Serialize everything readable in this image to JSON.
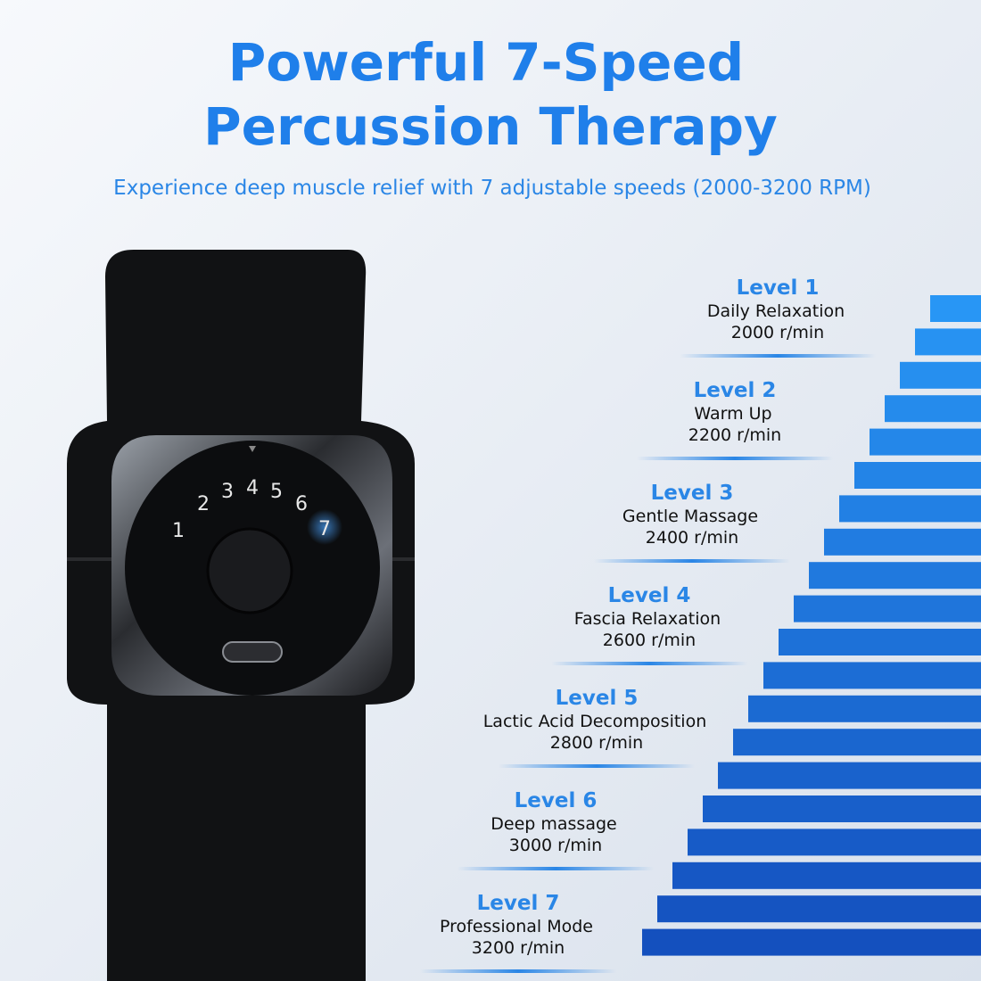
{
  "header": {
    "title": [
      "Powerful 7-Speed",
      "Percussion Therapy"
    ],
    "subtitle": "Experience deep muscle relief with 7 adjustable speeds (2000-3200 RPM)"
  },
  "dial": {
    "numbers": [
      "1",
      "2",
      "3",
      "4",
      "5",
      "6",
      "7"
    ]
  },
  "levels": [
    {
      "label": "Level 1",
      "name": "Daily Relaxation",
      "speed": "2000 r/min"
    },
    {
      "label": "Level 2",
      "name": "Warm Up",
      "speed": "2200 r/min"
    },
    {
      "label": "Level 3",
      "name": "Gentle Massage",
      "speed": "2400 r/min"
    },
    {
      "label": "Level 4",
      "name": "Fascia Relaxation",
      "speed": "2600 r/min"
    },
    {
      "label": "Level 5",
      "name": "Lactic Acid Decomposition",
      "speed": "2800 r/min"
    },
    {
      "label": "Level 6",
      "name": "Deep massage",
      "speed": "3000 r/min"
    },
    {
      "label": "Level 7",
      "name": "Professional Mode",
      "speed": "3200 r/min"
    }
  ]
}
